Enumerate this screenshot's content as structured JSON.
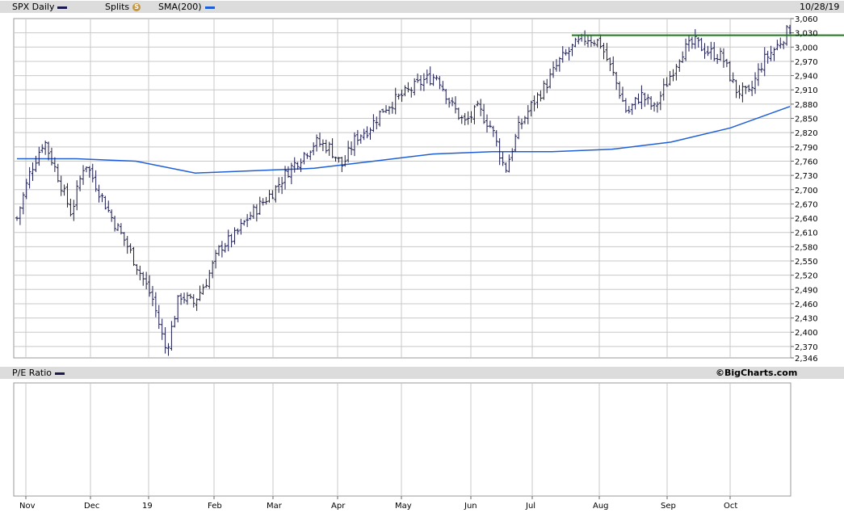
{
  "header": {
    "symbol_label": "SPX Daily",
    "splits_label": "Splits",
    "splits_badge": "S",
    "sma_label": "SMA(200)",
    "date_label": "10/28/19"
  },
  "lower_panel": {
    "label": "P/E Ratio",
    "copyright": "©BigCharts.com"
  },
  "colors": {
    "price_bars": "#1a1a4e",
    "sma": "#1f5fd6",
    "resistance": "#1a7a1a",
    "grid": "#c8c8c8",
    "header_bg": "#dcdcdc"
  },
  "chart_data": {
    "type": "ohlc",
    "ylim": [
      2346,
      3060
    ],
    "y_ticks": [
      "3,060",
      "3,030",
      "3,000",
      "2,970",
      "2,940",
      "2,910",
      "2,880",
      "2,850",
      "2,820",
      "2,790",
      "2,760",
      "2,730",
      "2,700",
      "2,670",
      "2,640",
      "2,610",
      "2,580",
      "2,550",
      "2,520",
      "2,490",
      "2,460",
      "2,430",
      "2,400",
      "2,370",
      "2,346"
    ],
    "x_ticks": [
      "Nov",
      "Dec",
      "19",
      "Feb",
      "Mar",
      "Apr",
      "May",
      "Jun",
      "Jul",
      "Aug",
      "Sep",
      "Oct"
    ],
    "series": [
      {
        "name": "SPX Daily",
        "approx_close_path": [
          [
            "Nov",
            2640
          ],
          [
            "Nov",
            2740
          ],
          [
            "Nov",
            2805
          ],
          [
            "Nov",
            2730
          ],
          [
            "Nov",
            2650
          ],
          [
            "Dec",
            2760
          ],
          [
            "Dec",
            2700
          ],
          [
            "Dec",
            2640
          ],
          [
            "Dec",
            2590
          ],
          [
            "Dec",
            2530
          ],
          [
            "Dec",
            2470
          ],
          [
            "Dec",
            2360
          ],
          [
            "Dec",
            2480
          ],
          [
            "Dec",
            2460
          ],
          [
            "19",
            2510
          ],
          [
            "19",
            2580
          ],
          [
            "19",
            2600
          ],
          [
            "19",
            2640
          ],
          [
            "19",
            2670
          ],
          [
            "Feb",
            2700
          ],
          [
            "Feb",
            2740
          ],
          [
            "Feb",
            2770
          ],
          [
            "Feb",
            2800
          ],
          [
            "Mar",
            2790
          ],
          [
            "Mar",
            2750
          ],
          [
            "Mar",
            2810
          ],
          [
            "Mar",
            2830
          ],
          [
            "Apr",
            2870
          ],
          [
            "Apr",
            2890
          ],
          [
            "Apr",
            2910
          ],
          [
            "Apr",
            2930
          ],
          [
            "May",
            2940
          ],
          [
            "May",
            2880
          ],
          [
            "May",
            2840
          ],
          [
            "May",
            2870
          ],
          [
            "May",
            2830
          ],
          [
            "Jun",
            2740
          ],
          [
            "Jun",
            2830
          ],
          [
            "Jun",
            2880
          ],
          [
            "Jun",
            2920
          ],
          [
            "Jul",
            2970
          ],
          [
            "Jul",
            3000
          ],
          [
            "Jul",
            3020
          ],
          [
            "Jul",
            3010
          ],
          [
            "Aug",
            2940
          ],
          [
            "Aug",
            2860
          ],
          [
            "Aug",
            2900
          ],
          [
            "Aug",
            2870
          ],
          [
            "Aug",
            2930
          ],
          [
            "Sep",
            2990
          ],
          [
            "Sep",
            3010
          ],
          [
            "Sep",
            2990
          ],
          [
            "Sep",
            2980
          ],
          [
            "Oct",
            2910
          ],
          [
            "Oct",
            2900
          ],
          [
            "Oct",
            2970
          ],
          [
            "Oct",
            3000
          ],
          [
            "Oct",
            3040
          ]
        ]
      },
      {
        "name": "SMA(200)",
        "values": [
          2765,
          2765,
          2760,
          2735,
          2740,
          2745,
          2760,
          2775,
          2780,
          2780,
          2785,
          2800,
          2830,
          2875
        ]
      }
    ],
    "resistance_level": 3025,
    "grid": true
  }
}
